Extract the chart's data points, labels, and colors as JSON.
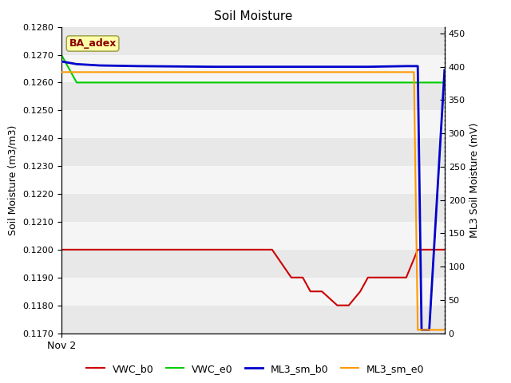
{
  "title": "Soil Moisture",
  "ylabel_left": "Soil Moisture (m3/m3)",
  "ylabel_right": "ML3 Soil Moisture (mV)",
  "xlabel": "Nov 2",
  "annotation": "BA_adex",
  "ylim_left": [
    0.117,
    0.128
  ],
  "ylim_right": [
    0,
    460
  ],
  "yticks_left": [
    0.117,
    0.118,
    0.119,
    0.12,
    0.121,
    0.122,
    0.123,
    0.124,
    0.125,
    0.126,
    0.127,
    0.128
  ],
  "yticks_right": [
    0,
    50,
    100,
    150,
    200,
    250,
    300,
    350,
    400,
    450
  ],
  "band_colors": [
    "#e8e8e8",
    "#f5f5f5"
  ],
  "legend_entries": [
    "VWC_b0",
    "VWC_e0",
    "ML3_sm_b0",
    "ML3_sm_e0"
  ],
  "legend_colors": [
    "#cc0000",
    "#00cc00",
    "#0000cc",
    "#ff9900"
  ],
  "series": {
    "VWC_b0": {
      "color": "#cc0000",
      "x": [
        0,
        0.3,
        0.55,
        0.6,
        0.63,
        0.65,
        0.68,
        0.72,
        0.75,
        0.78,
        0.8,
        0.83,
        0.86,
        0.9,
        0.93,
        0.95,
        0.97,
        1.0
      ],
      "y": [
        0.12,
        0.12,
        0.12,
        0.119,
        0.119,
        0.1185,
        0.1185,
        0.118,
        0.118,
        0.1185,
        0.119,
        0.119,
        0.119,
        0.119,
        0.12,
        0.12,
        0.12,
        0.12
      ]
    },
    "VWC_e0": {
      "color": "#00cc00",
      "x": [
        0,
        0.04,
        0.08,
        0.15,
        1.0
      ],
      "y": [
        0.127,
        0.126,
        0.126,
        0.126,
        0.126
      ]
    },
    "ML3_sm_b0": {
      "color": "#0000cc",
      "x": [
        0,
        0.04,
        0.1,
        0.2,
        0.4,
        0.6,
        0.8,
        0.9,
        0.93,
        0.94,
        0.96,
        1.0
      ],
      "y": [
        408,
        404,
        402,
        401,
        400,
        400,
        400,
        401,
        401,
        5,
        5,
        395
      ]
    },
    "ML3_sm_e0": {
      "color": "#ff9900",
      "x": [
        0,
        0.1,
        0.4,
        0.6,
        0.8,
        0.9,
        0.91,
        0.92,
        0.93,
        0.94,
        1.0
      ],
      "y": [
        392,
        392,
        392,
        392,
        392,
        392,
        392,
        392,
        5,
        5,
        5
      ]
    }
  }
}
